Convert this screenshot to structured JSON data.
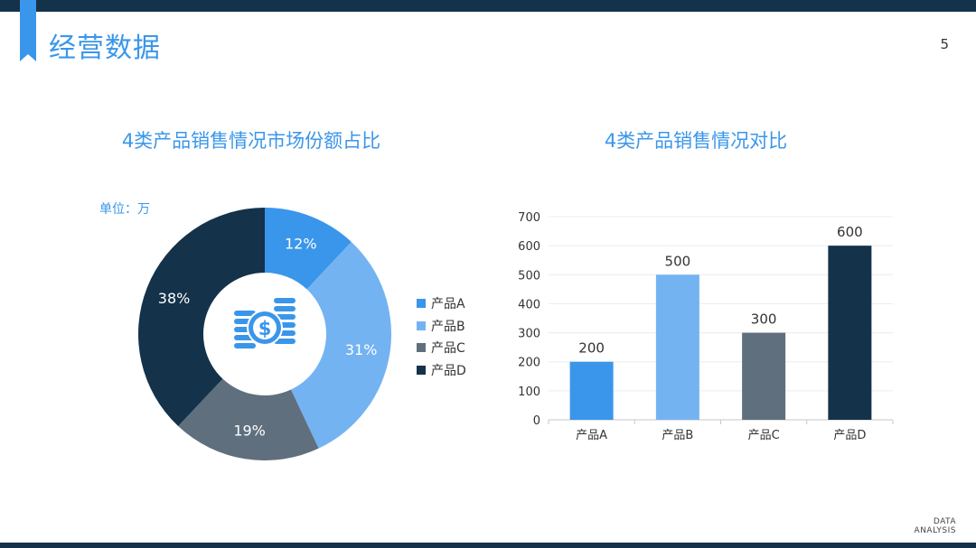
{
  "header": {
    "title": "经营数据",
    "page_number": "5"
  },
  "footer": {
    "line1": "DATA",
    "line2": "ANALYSIS"
  },
  "colors": {
    "accent": "#3a96ea",
    "dark": "#14324a"
  },
  "center_icon": "dollar-coins-icon",
  "pie": {
    "title": "4类产品销售情况市场份额占比",
    "unit_label": "单位：万"
  },
  "bar": {
    "title": "4类产品销售情况对比"
  },
  "chart_data": [
    {
      "type": "pie",
      "donut": true,
      "title": "4类产品销售情况市场份额占比",
      "unit": "单位：万",
      "categories": [
        "产品A",
        "产品B",
        "产品C",
        "产品D"
      ],
      "values": [
        12,
        31,
        19,
        38
      ],
      "value_labels": [
        "12%",
        "31%",
        "19%",
        "38%"
      ],
      "colors": [
        "#3a96ea",
        "#74b3f2",
        "#5f6f7d",
        "#14324a"
      ],
      "legend": "right"
    },
    {
      "type": "bar",
      "title": "4类产品销售情况对比",
      "categories": [
        "产品A",
        "产品B",
        "产品C",
        "产品D"
      ],
      "values": [
        200,
        500,
        300,
        600
      ],
      "colors": [
        "#3a96ea",
        "#74b3f2",
        "#5f6f7d",
        "#14324a"
      ],
      "ylim": [
        0,
        700
      ],
      "yticks": [
        0,
        100,
        200,
        300,
        400,
        500,
        600,
        700
      ],
      "grid": true,
      "xlabel": "",
      "ylabel": ""
    }
  ]
}
